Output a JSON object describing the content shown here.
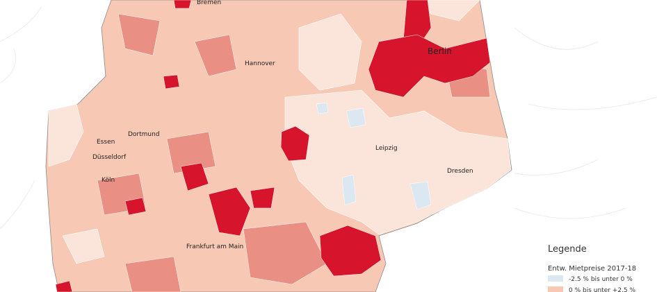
{
  "cities": [
    {
      "label": "Bremen"
    },
    {
      "label": "Hannover"
    },
    {
      "label": "Berlin"
    },
    {
      "label": "Dortmund"
    },
    {
      "label": "Essen"
    },
    {
      "label": "Düsseldorf"
    },
    {
      "label": "Köln"
    },
    {
      "label": "Leipzig"
    },
    {
      "label": "Dresden"
    },
    {
      "label": "Frankfurt am Main"
    }
  ],
  "legend": {
    "title": "Legende",
    "subtitle": "Entw. Mietpreise 2017-18",
    "items": [
      {
        "label": "-2.5 % bis unter 0 %",
        "color": "#dbe8f2"
      },
      {
        "label": "0 % bis unter +2.5 %",
        "color": "#f7c8b4"
      }
    ]
  }
}
